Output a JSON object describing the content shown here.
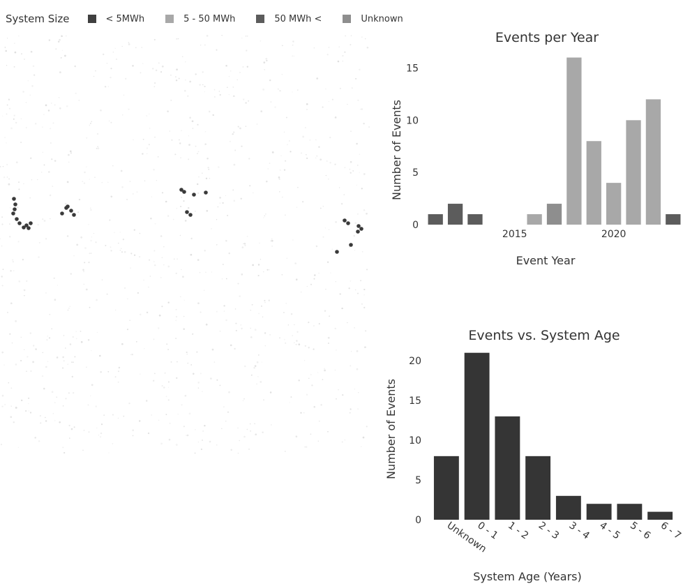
{
  "legend": {
    "title": "System Size",
    "items": [
      {
        "label": "< 5MWh",
        "color": "#3f3f3f"
      },
      {
        "label": "5 - 50 MWh",
        "color": "#a8a8a8"
      },
      {
        "label": "50 MWh <",
        "color": "#5c5c5c"
      },
      {
        "label": "Unknown",
        "color": "#8e8e8e"
      }
    ]
  },
  "map": {
    "marker_color": "#3a3a3a"
  },
  "chart_data": [
    {
      "type": "bar",
      "title": "Events per Year",
      "xlabel": "Event Year",
      "ylabel": "Number of Events",
      "x": [
        2011,
        2012,
        2013,
        2016,
        2017,
        2018,
        2019,
        2020,
        2021,
        2022,
        2023
      ],
      "values": [
        1,
        2,
        1,
        1,
        2,
        16,
        8,
        4,
        10,
        12,
        1
      ],
      "colors": [
        "#5c5c5c",
        "#5c5c5c",
        "#5c5c5c",
        "#a8a8a8",
        "#8e8e8e",
        "#a8a8a8",
        "#a8a8a8",
        "#a8a8a8",
        "#a8a8a8",
        "#a8a8a8",
        "#5c5c5c"
      ],
      "xlim": [
        2010.5,
        2023.5
      ],
      "ylim": [
        0,
        16.5
      ],
      "xticks": [
        2015,
        2020
      ],
      "yticks": [
        0,
        5,
        10,
        15
      ],
      "grid": false
    },
    {
      "type": "bar",
      "title": "Events vs. System Age",
      "xlabel": "System Age (Years)",
      "ylabel": "Number of Events",
      "categories": [
        "Unknown",
        "0 - 1",
        "1 - 2",
        "2 - 3",
        "3 - 4",
        "4 - 5",
        "5 - 6",
        "6 - 7"
      ],
      "values": [
        8,
        21,
        13,
        8,
        3,
        2,
        2,
        1
      ],
      "color": "#353535",
      "ylim": [
        0,
        21.5
      ],
      "yticks": [
        0,
        5,
        10,
        15,
        20
      ],
      "grid": false
    }
  ]
}
